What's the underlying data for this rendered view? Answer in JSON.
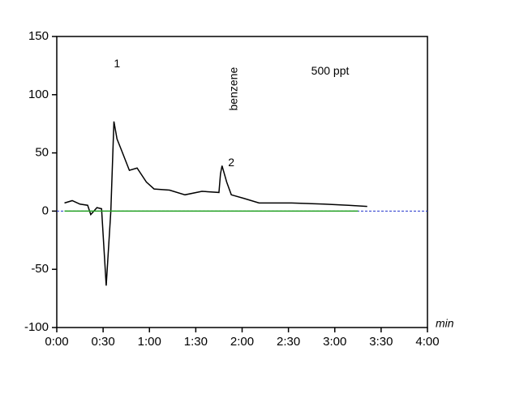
{
  "chart_data": {
    "type": "line",
    "x_label": "min",
    "annotations": [
      {
        "text": "1",
        "x": 39,
        "y": 126
      },
      {
        "text": "benzene",
        "x": 115,
        "y": 105,
        "rotate": true
      },
      {
        "text": "2",
        "x": 113,
        "y": 41
      },
      {
        "text": "500 ppt",
        "x": 177,
        "y": 120
      }
    ],
    "series": [
      {
        "color": "#000000",
        "x": [
          5,
          10,
          15,
          20,
          22,
          26,
          29,
          32,
          35,
          37,
          39,
          42,
          47,
          52,
          58,
          63,
          73,
          83,
          94,
          105,
          106,
          107,
          110,
          113,
          121,
          131,
          152,
          173,
          189,
          201
        ],
        "values": [
          7,
          9,
          6,
          5,
          -3,
          3,
          2,
          -64,
          0,
          77,
          62,
          52,
          35,
          37,
          25,
          19,
          18,
          14,
          17,
          16,
          32,
          39,
          25,
          14,
          11,
          7,
          7,
          6,
          5,
          4
        ]
      },
      {
        "color": "#22a022",
        "x": [
          5,
          195
        ],
        "values": [
          0,
          0
        ]
      }
    ],
    "xlim": [
      0,
      240
    ],
    "ylim": [
      -100,
      150
    ],
    "xticks": [
      {
        "value": 0,
        "label": "0:00"
      },
      {
        "value": 30,
        "label": "0:30"
      },
      {
        "value": 60,
        "label": "1:00"
      },
      {
        "value": 90,
        "label": "1:30"
      },
      {
        "value": 120,
        "label": "2:00"
      },
      {
        "value": 150,
        "label": "2:30"
      },
      {
        "value": 180,
        "label": "3:00"
      },
      {
        "value": 210,
        "label": "3:30"
      },
      {
        "value": 240,
        "label": "4:00"
      }
    ],
    "yticks": [
      150,
      100,
      50,
      0,
      -50,
      -100
    ],
    "zero_line_color": "#2233cc"
  }
}
